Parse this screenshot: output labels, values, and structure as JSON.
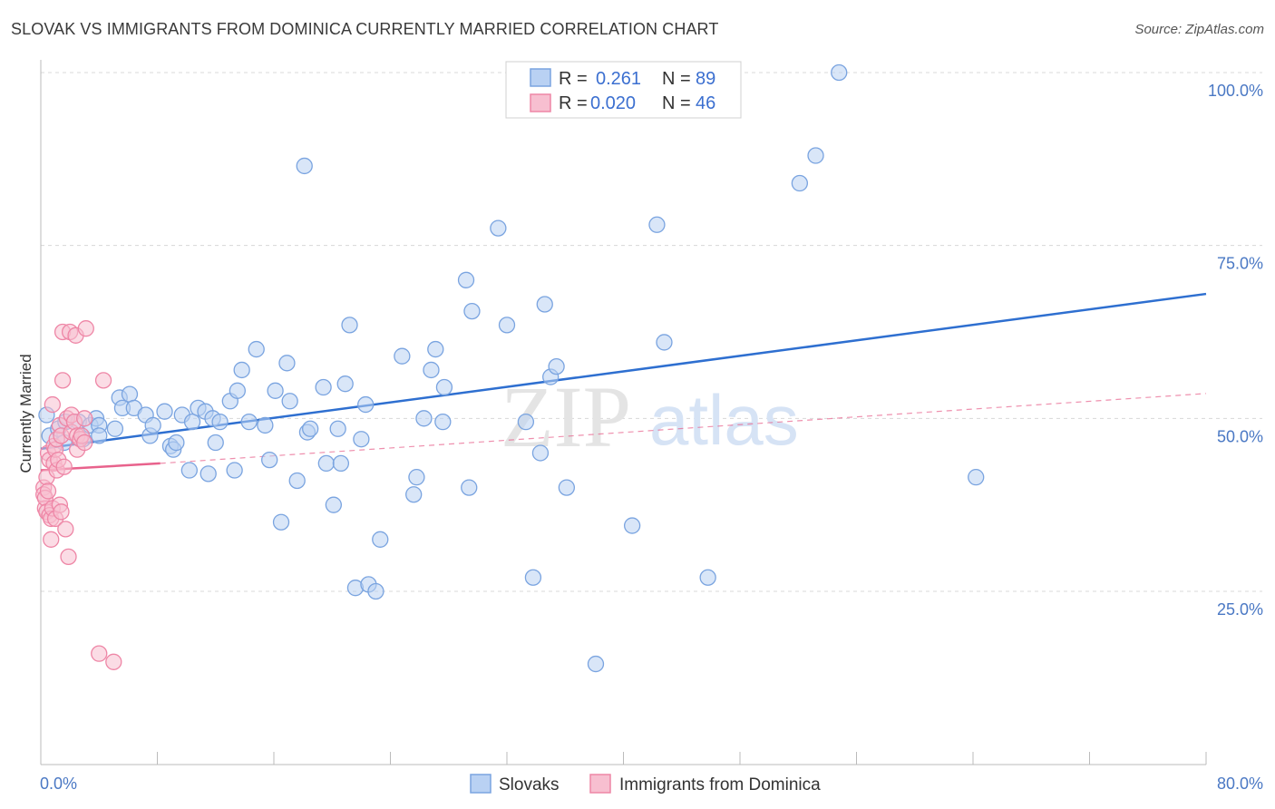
{
  "title": "SLOVAK VS IMMIGRANTS FROM DOMINICA CURRENTLY MARRIED CORRELATION CHART",
  "source": "Source: ZipAtlas.com",
  "watermark": {
    "zip": "ZIP",
    "atlas": "atlas"
  },
  "colors": {
    "slovak_fill": "#b9d1f3",
    "slovak_stroke": "#7aa4e0",
    "slovak_line": "#2e6fd0",
    "dominica_fill": "#f7bfd0",
    "dominica_stroke": "#ee86a6",
    "dominica_line": "#e8628c",
    "grid": "#d8d8d8",
    "tick_label": "#4a78c4"
  },
  "legend": {
    "rows": [
      {
        "r_label": "R =",
        "r_value": "0.261",
        "n_label": "N =",
        "n_value": "89"
      },
      {
        "r_label": "R =",
        "r_value": "0.020",
        "n_label": "N =",
        "n_value": "46"
      }
    ]
  },
  "chart_data": {
    "type": "scatter",
    "title": "SLOVAK VS IMMIGRANTS FROM DOMINICA CURRENTLY MARRIED CORRELATION CHART",
    "xlabel": "",
    "ylabel": "Currently Married",
    "xlim": [
      0,
      80
    ],
    "ylim": [
      0,
      102
    ],
    "x_tick_labels": [
      "0.0%",
      "80.0%"
    ],
    "y_ticks": [
      25,
      50,
      75,
      100
    ],
    "y_tick_labels": [
      "25.0%",
      "50.0%",
      "75.0%",
      "100.0%"
    ],
    "grid": "horizontal dashed",
    "legend_position": "top-center",
    "series": [
      {
        "name": "Slovaks",
        "r": 0.261,
        "n": 89,
        "trend": {
          "x": [
            0,
            80
          ],
          "y": [
            45.6,
            68.0
          ]
        },
        "points": [
          [
            0.4,
            50.5
          ],
          [
            0.6,
            47.5
          ],
          [
            1.2,
            48.5
          ],
          [
            1.6,
            46.5
          ],
          [
            1.7,
            49.5
          ],
          [
            2.6,
            49.5
          ],
          [
            2.9,
            47.0
          ],
          [
            3.4,
            49.0
          ],
          [
            3.8,
            50.0
          ],
          [
            4.0,
            49.0
          ],
          [
            4.0,
            47.5
          ],
          [
            5.1,
            48.5
          ],
          [
            5.4,
            53.0
          ],
          [
            5.6,
            51.5
          ],
          [
            6.1,
            53.5
          ],
          [
            6.4,
            51.5
          ],
          [
            7.2,
            50.5
          ],
          [
            7.5,
            47.5
          ],
          [
            7.7,
            49.0
          ],
          [
            8.5,
            51.0
          ],
          [
            8.9,
            46.0
          ],
          [
            9.1,
            45.5
          ],
          [
            9.3,
            46.5
          ],
          [
            9.7,
            50.5
          ],
          [
            10.2,
            42.5
          ],
          [
            10.4,
            49.5
          ],
          [
            10.8,
            51.5
          ],
          [
            11.3,
            51.0
          ],
          [
            11.5,
            42.0
          ],
          [
            11.8,
            50.0
          ],
          [
            12.0,
            46.5
          ],
          [
            12.3,
            49.5
          ],
          [
            13.0,
            52.5
          ],
          [
            13.3,
            42.5
          ],
          [
            13.5,
            54.0
          ],
          [
            13.8,
            57.0
          ],
          [
            14.3,
            49.5
          ],
          [
            14.8,
            60.0
          ],
          [
            15.4,
            49.0
          ],
          [
            15.7,
            44.0
          ],
          [
            16.1,
            54.0
          ],
          [
            16.5,
            35.0
          ],
          [
            16.9,
            58.0
          ],
          [
            17.1,
            52.5
          ],
          [
            17.6,
            41.0
          ],
          [
            18.1,
            86.5
          ],
          [
            18.3,
            48.0
          ],
          [
            18.5,
            48.5
          ],
          [
            19.4,
            54.5
          ],
          [
            19.6,
            43.5
          ],
          [
            20.1,
            37.5
          ],
          [
            20.4,
            48.5
          ],
          [
            20.6,
            43.5
          ],
          [
            20.9,
            55.0
          ],
          [
            21.2,
            63.5
          ],
          [
            21.6,
            25.5
          ],
          [
            22.0,
            47.0
          ],
          [
            22.3,
            52.0
          ],
          [
            22.5,
            26.0
          ],
          [
            23.0,
            25.0
          ],
          [
            23.3,
            32.5
          ],
          [
            24.8,
            59.0
          ],
          [
            25.6,
            39.0
          ],
          [
            25.8,
            41.5
          ],
          [
            26.3,
            50.0
          ],
          [
            26.8,
            57.0
          ],
          [
            27.1,
            60.0
          ],
          [
            27.6,
            49.5
          ],
          [
            27.7,
            54.5
          ],
          [
            29.2,
            70.0
          ],
          [
            29.4,
            40.0
          ],
          [
            29.6,
            65.5
          ],
          [
            31.4,
            77.5
          ],
          [
            32.0,
            63.5
          ],
          [
            33.3,
            49.5
          ],
          [
            33.8,
            27.0
          ],
          [
            34.3,
            45.0
          ],
          [
            34.6,
            66.5
          ],
          [
            35.0,
            56.0
          ],
          [
            35.4,
            57.5
          ],
          [
            36.1,
            40.0
          ],
          [
            38.1,
            14.5
          ],
          [
            40.6,
            34.5
          ],
          [
            42.3,
            78.0
          ],
          [
            42.8,
            61.0
          ],
          [
            45.8,
            27.0
          ],
          [
            52.1,
            84.0
          ],
          [
            53.2,
            88.0
          ],
          [
            54.8,
            100.0
          ],
          [
            64.2,
            41.5
          ]
        ]
      },
      {
        "name": "Immigrants from Dominica",
        "r": 0.02,
        "n": 46,
        "trend": {
          "x": [
            0,
            8.2
          ],
          "y": [
            42.5,
            43.5
          ],
          "dashed_extension": {
            "x": [
              8.2,
              80
            ],
            "y": [
              43.5,
              53.6
            ]
          }
        },
        "points": [
          [
            0.2,
            40.0
          ],
          [
            0.2,
            39.0
          ],
          [
            0.3,
            37.0
          ],
          [
            0.3,
            38.5
          ],
          [
            0.4,
            36.5
          ],
          [
            0.4,
            41.5
          ],
          [
            0.5,
            39.5
          ],
          [
            0.5,
            45.0
          ],
          [
            0.6,
            36.0
          ],
          [
            0.6,
            44.0
          ],
          [
            0.7,
            35.5
          ],
          [
            0.7,
            32.5
          ],
          [
            0.8,
            37.0
          ],
          [
            0.8,
            52.0
          ],
          [
            0.9,
            43.5
          ],
          [
            0.9,
            46.0
          ],
          [
            1.0,
            35.5
          ],
          [
            1.0,
            45.5
          ],
          [
            1.1,
            47.0
          ],
          [
            1.1,
            42.5
          ],
          [
            1.2,
            44.0
          ],
          [
            1.3,
            37.5
          ],
          [
            1.3,
            49.0
          ],
          [
            1.4,
            36.5
          ],
          [
            1.4,
            47.5
          ],
          [
            1.5,
            55.5
          ],
          [
            1.5,
            62.5
          ],
          [
            1.6,
            43.0
          ],
          [
            1.7,
            34.0
          ],
          [
            1.8,
            50.0
          ],
          [
            1.9,
            30.0
          ],
          [
            2.0,
            62.5
          ],
          [
            2.1,
            48.0
          ],
          [
            2.1,
            50.5
          ],
          [
            2.3,
            49.5
          ],
          [
            2.4,
            62.0
          ],
          [
            2.5,
            47.5
          ],
          [
            2.5,
            45.5
          ],
          [
            2.7,
            47.0
          ],
          [
            2.8,
            47.5
          ],
          [
            3.0,
            46.5
          ],
          [
            3.0,
            50.0
          ],
          [
            3.1,
            63.0
          ],
          [
            4.0,
            16.0
          ],
          [
            4.3,
            55.5
          ],
          [
            5.0,
            14.8
          ]
        ]
      }
    ]
  },
  "bottom_legend": [
    "Slovaks",
    "Immigrants from Dominica"
  ]
}
